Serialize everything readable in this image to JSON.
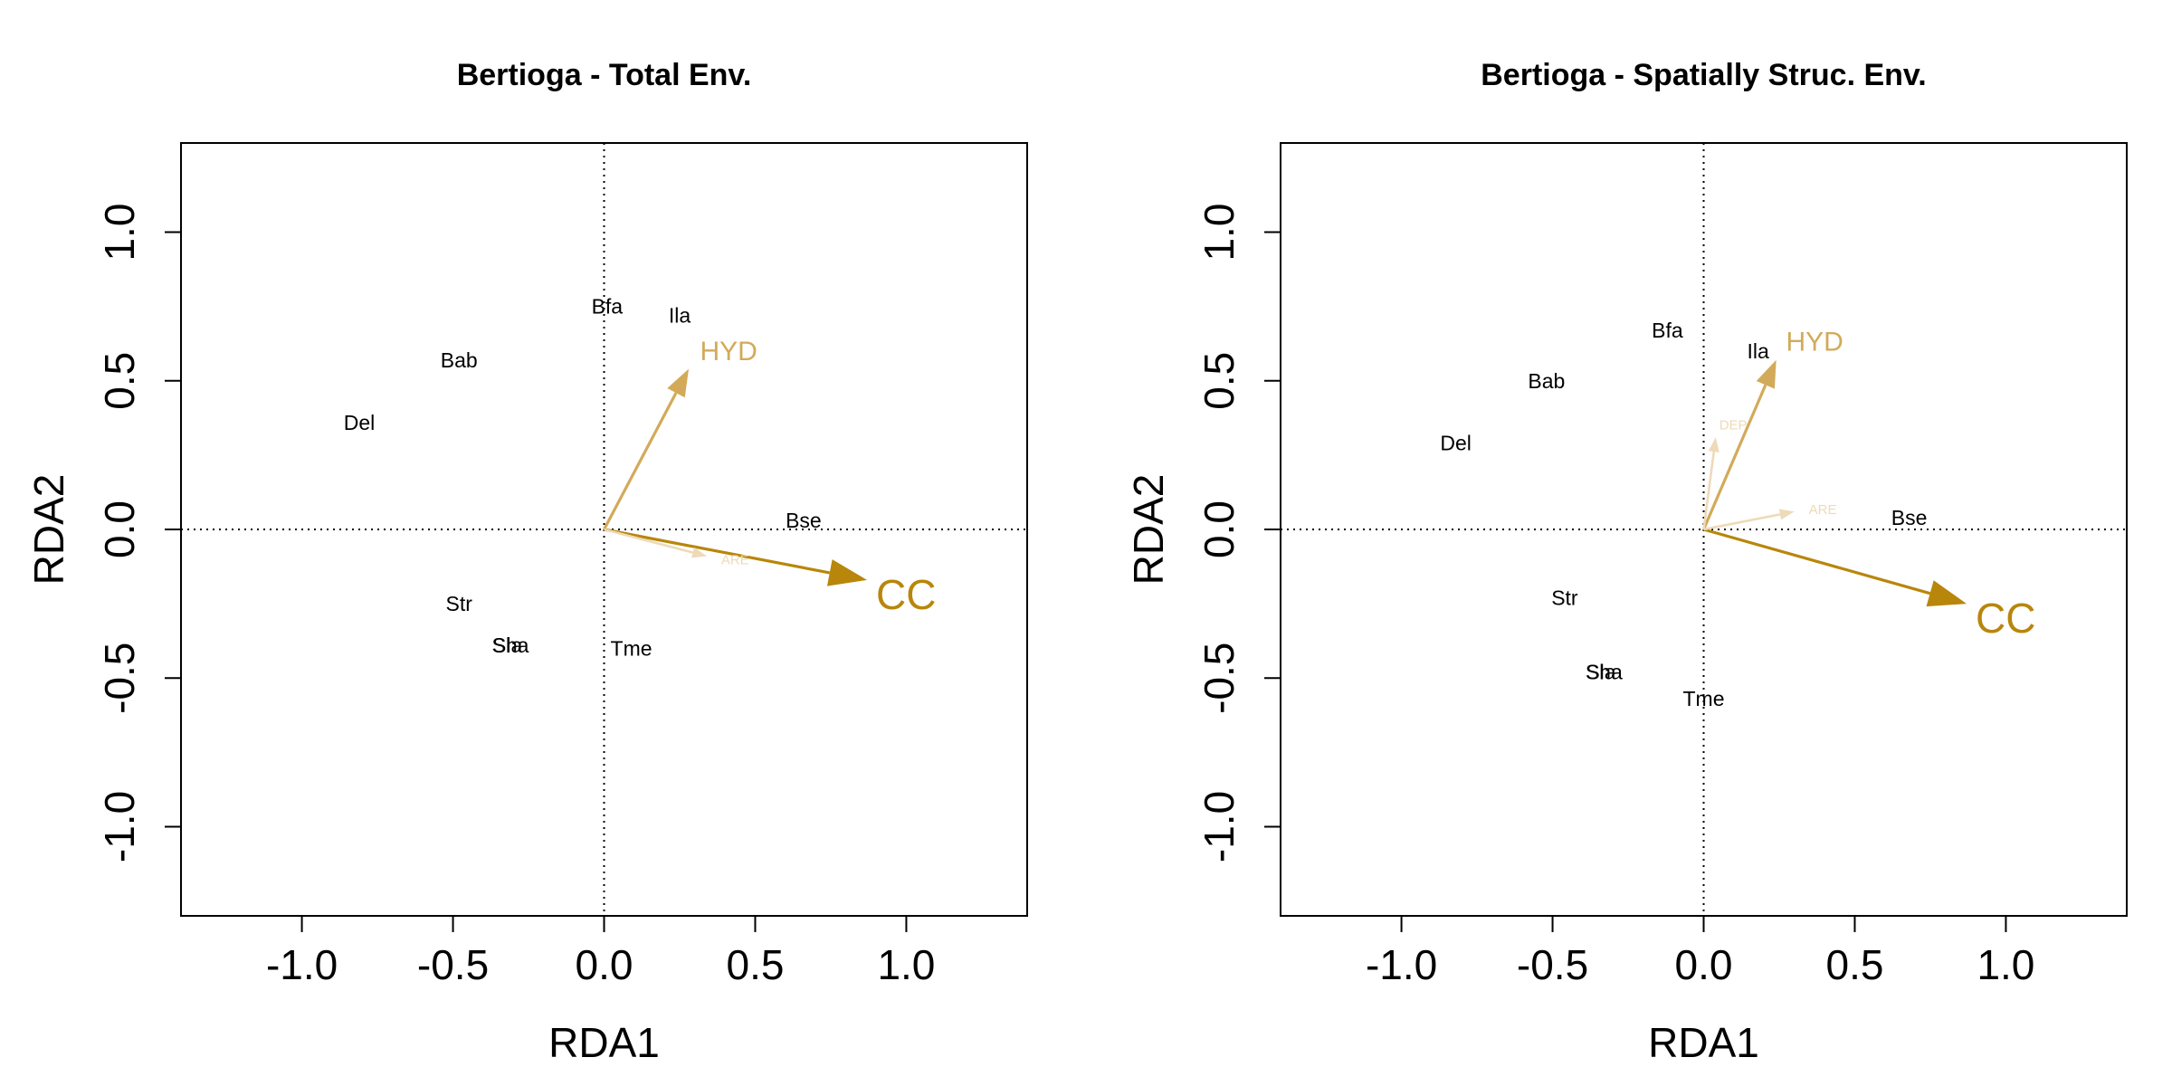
{
  "colors": {
    "strong": "#B8860B",
    "medium": "#D2AA5A",
    "light": "#E3C58A",
    "faint": "#EEDAB8",
    "zero_line": "#000000"
  },
  "chart_data": [
    {
      "type": "scatter",
      "title": "Bertioga - Total Env.",
      "xlabel": "RDA1",
      "ylabel": "RDA2",
      "xlim": [
        -1.4,
        1.4
      ],
      "ylim": [
        -1.3,
        1.3
      ],
      "xticks": [
        "-1.0",
        "-0.5",
        "0.0",
        "0.5",
        "1.0"
      ],
      "yticks": [
        "-1.0",
        "-0.5",
        "0.0",
        "0.5",
        "1.0"
      ],
      "zero_lines": true,
      "grid": false,
      "species": [
        {
          "label": "Bfa",
          "x": 0.01,
          "y": 0.75
        },
        {
          "label": "Ila",
          "x": 0.25,
          "y": 0.72
        },
        {
          "label": "Bab",
          "x": -0.48,
          "y": 0.57
        },
        {
          "label": "Del",
          "x": -0.81,
          "y": 0.36
        },
        {
          "label": "Bse",
          "x": 0.66,
          "y": 0.03
        },
        {
          "label": "Str",
          "x": -0.48,
          "y": -0.25
        },
        {
          "label": "Sla",
          "x": -0.32,
          "y": -0.39
        },
        {
          "label": "Sha",
          "x": -0.31,
          "y": -0.39
        },
        {
          "label": "Tme",
          "x": 0.09,
          "y": -0.4
        }
      ],
      "vectors": [
        {
          "label": "CC",
          "x": 0.87,
          "y": -0.17,
          "tone": "strong"
        },
        {
          "label": "HYD",
          "x": 0.28,
          "y": 0.54,
          "tone": "medium"
        },
        {
          "label": "ARE",
          "x": 0.34,
          "y": -0.09,
          "tone": "faint"
        }
      ]
    },
    {
      "type": "scatter",
      "title": "Bertioga - Spatially Struc. Env.",
      "xlabel": "RDA1",
      "ylabel": "RDA2",
      "xlim": [
        -1.4,
        1.4
      ],
      "ylim": [
        -1.3,
        1.3
      ],
      "xticks": [
        "-1.0",
        "-0.5",
        "0.0",
        "0.5",
        "1.0"
      ],
      "yticks": [
        "-1.0",
        "-0.5",
        "0.0",
        "0.5",
        "1.0"
      ],
      "zero_lines": true,
      "grid": false,
      "species": [
        {
          "label": "Bfa",
          "x": -0.12,
          "y": 0.67
        },
        {
          "label": "Ila",
          "x": 0.18,
          "y": 0.6
        },
        {
          "label": "Bab",
          "x": -0.52,
          "y": 0.5
        },
        {
          "label": "Del",
          "x": -0.82,
          "y": 0.29
        },
        {
          "label": "Bse",
          "x": 0.68,
          "y": 0.04
        },
        {
          "label": "Str",
          "x": -0.46,
          "y": -0.23
        },
        {
          "label": "Sla",
          "x": -0.34,
          "y": -0.48
        },
        {
          "label": "Sha",
          "x": -0.33,
          "y": -0.48
        },
        {
          "label": "Tme",
          "x": 0.0,
          "y": -0.57
        }
      ],
      "vectors": [
        {
          "label": "CC",
          "x": 0.87,
          "y": -0.25,
          "tone": "strong"
        },
        {
          "label": "HYD",
          "x": 0.24,
          "y": 0.57,
          "tone": "medium"
        },
        {
          "label": "DEP",
          "x": 0.04,
          "y": 0.31,
          "tone": "faint"
        },
        {
          "label": "ARE",
          "x": 0.3,
          "y": 0.06,
          "tone": "faint"
        }
      ]
    }
  ]
}
